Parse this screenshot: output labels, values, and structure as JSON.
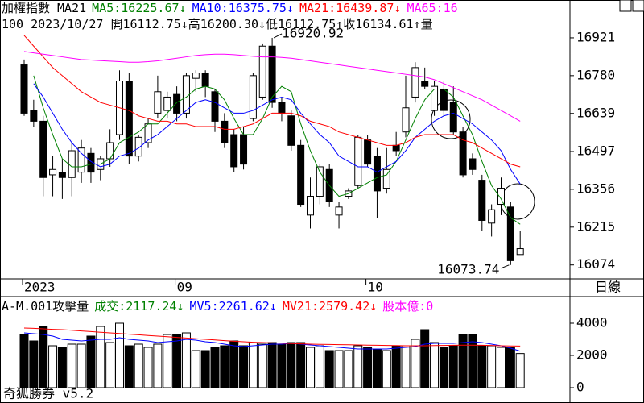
{
  "header": {
    "title": "加權指數 MA21",
    "info": "100 2023/10/27 開16112.75↓高16200.30↓低16112.75↑收16134.61↑量"
  },
  "period": "日線",
  "footer": "奇狐勝券 v5.2",
  "chart_data": [
    {
      "type": "candlestick",
      "categories": [
        "2023",
        null,
        null,
        null,
        null,
        null,
        null,
        null,
        null,
        null,
        null,
        null,
        null,
        null,
        null,
        null,
        "09",
        null,
        null,
        null,
        null,
        null,
        null,
        null,
        null,
        null,
        null,
        null,
        null,
        null,
        null,
        null,
        null,
        null,
        null,
        null,
        "10",
        null,
        null,
        null,
        null,
        null,
        null,
        null,
        null,
        null,
        null,
        null,
        null,
        null,
        null,
        null,
        null
      ],
      "open": [
        16820,
        16650,
        16610,
        16410,
        16420,
        16400,
        16420,
        16490,
        16430,
        16470,
        16560,
        16760,
        16480,
        16530,
        16640,
        16650,
        16710,
        16640,
        16770,
        16790,
        16720,
        16610,
        16560,
        16560,
        16620,
        16700,
        16890,
        16680,
        16630,
        16520,
        16260,
        16330,
        16430,
        16260,
        16330,
        16370,
        16540,
        16480,
        16360,
        16520,
        16570,
        16700,
        16760,
        16650,
        16730,
        16680,
        16570,
        16470,
        16390,
        16230,
        16300,
        16290,
        16112.75
      ],
      "high": [
        16840,
        16690,
        16630,
        16480,
        16470,
        16530,
        16540,
        16510,
        16480,
        16580,
        16800,
        16790,
        16560,
        16620,
        16780,
        16720,
        16740,
        16790,
        16800,
        16800,
        16730,
        16640,
        16580,
        16590,
        16790,
        16900,
        16920.92,
        16700,
        16650,
        16540,
        16400,
        16450,
        16450,
        16310,
        16360,
        16560,
        16560,
        16510,
        16510,
        16570,
        16780,
        16830,
        16810,
        16760,
        16760,
        16740,
        16590,
        16490,
        16410,
        16300,
        16400,
        16310,
        16200.3
      ],
      "low": [
        16630,
        16590,
        16330,
        16330,
        16320,
        16330,
        16380,
        16380,
        16390,
        16440,
        16540,
        16450,
        16460,
        16510,
        16620,
        16620,
        16610,
        16620,
        16720,
        16700,
        16570,
        16510,
        16420,
        16430,
        16610,
        16690,
        16660,
        16610,
        16500,
        16290,
        16210,
        16300,
        16290,
        16210,
        16320,
        16360,
        16440,
        16250,
        16340,
        16480,
        16550,
        16680,
        16730,
        16630,
        16630,
        16560,
        16400,
        16410,
        16200,
        16180,
        16260,
        16073.74,
        16112.75
      ],
      "close": [
        16640,
        16610,
        16400,
        16430,
        16400,
        16500,
        16510,
        16420,
        16470,
        16530,
        16760,
        16480,
        16550,
        16600,
        16720,
        16700,
        16640,
        16780,
        16790,
        16740,
        16610,
        16530,
        16440,
        16450,
        16780,
        16890,
        16680,
        16640,
        16520,
        16300,
        16330,
        16440,
        16310,
        16290,
        16350,
        16550,
        16450,
        16350,
        16430,
        16500,
        16660,
        16810,
        16740,
        16740,
        16650,
        16570,
        16410,
        16430,
        16240,
        16280,
        16360,
        16090,
        16134.61
      ],
      "series": [
        {
          "name": "MA5:16225.67↓",
          "color": "#008000",
          "values": [
            null,
            16780,
            16660,
            16560,
            16470,
            16440,
            16440,
            16450,
            16450,
            16470,
            16530,
            16550,
            16570,
            16600,
            16600,
            16640,
            16680,
            16700,
            16730,
            16740,
            16730,
            16690,
            16620,
            16560,
            16560,
            16620,
            16700,
            16740,
            16720,
            16600,
            16500,
            16420,
            16370,
            16330,
            16340,
            16360,
            16380,
            16400,
            16410,
            16460,
            16540,
            16620,
            16690,
            16730,
            16730,
            16700,
            16630,
            16560,
            16460,
            16370,
            16320,
            16250,
            16225.67
          ]
        },
        {
          "name": "MA10:16375.75↓",
          "color": "#0000ff",
          "values": [
            null,
            16750,
            16700,
            16640,
            16580,
            16530,
            16490,
            16460,
            16440,
            16450,
            16480,
            16490,
            16510,
            16540,
            16560,
            16590,
            16620,
            16650,
            16680,
            16690,
            16680,
            16660,
            16640,
            16640,
            16650,
            16670,
            16690,
            16700,
            16690,
            16640,
            16600,
            16560,
            16530,
            16480,
            16460,
            16440,
            16440,
            16420,
            16440,
            16460,
            16500,
            16550,
            16580,
            16610,
            16630,
            16640,
            16620,
            16600,
            16570,
            16540,
            16500,
            16430,
            16375.75
          ]
        },
        {
          "name": "MA21:16439.87↓",
          "color": "#ff0000",
          "values": [
            16930,
            16890,
            16850,
            16810,
            16780,
            16750,
            16720,
            16700,
            16680,
            16670,
            16660,
            16650,
            16630,
            16620,
            16610,
            16610,
            16600,
            16600,
            16590,
            16590,
            16590,
            16580,
            16580,
            16590,
            16600,
            16620,
            16640,
            16640,
            16640,
            16630,
            16610,
            16600,
            16590,
            16570,
            16560,
            16550,
            16540,
            16530,
            16520,
            16520,
            16530,
            16550,
            16560,
            16560,
            16560,
            16560,
            16540,
            16530,
            16510,
            16490,
            16470,
            16450,
            16439.87
          ]
        },
        {
          "name": "MA65:16",
          "color": "#ff00ff",
          "values": [
            16870,
            16865,
            16860,
            16855,
            16850,
            16845,
            16840,
            16838,
            16836,
            16834,
            16832,
            16830,
            16830,
            16832,
            16835,
            16840,
            16845,
            16850,
            16855,
            16858,
            16860,
            16860,
            16858,
            16855,
            16852,
            16850,
            16850,
            16848,
            16845,
            16840,
            16835,
            16830,
            16825,
            16820,
            16815,
            16810,
            16805,
            16800,
            16795,
            16790,
            16785,
            16780,
            16775,
            16765,
            16750,
            16735,
            16720,
            16705,
            16690,
            16670,
            16650,
            16630,
            16610
          ]
        }
      ],
      "ylim": [
        16025,
        17002
      ],
      "yticks": [
        16921,
        16780,
        16639,
        16497,
        16356,
        16215,
        16074
      ]
    },
    {
      "type": "bar",
      "title": "A-M.001攻擊量",
      "volume": {
        "name": "成交:2117.24↓",
        "color": "#008000",
        "values": [
          3300,
          2900,
          3800,
          2600,
          2500,
          2700,
          2700,
          3200,
          3800,
          2800,
          4000,
          2600,
          2700,
          2500,
          2700,
          3300,
          3300,
          3400,
          2300,
          2300,
          2500,
          2600,
          2900,
          2600,
          2800,
          2700,
          2800,
          2700,
          2800,
          2800,
          2500,
          2600,
          2300,
          2300,
          2300,
          2600,
          2500,
          2400,
          2300,
          2600,
          2600,
          3000,
          3600,
          2800,
          2500,
          2600,
          3300,
          3300,
          2600,
          2600,
          2500,
          2500,
          2117.24
        ]
      },
      "series": [
        {
          "name": "MV5:2261.62↓",
          "color": "#0000ff",
          "values": [
            3400,
            3350,
            3300,
            3200,
            3000,
            2950,
            2900,
            2950,
            3000,
            3000,
            3100,
            3000,
            2950,
            2900,
            2800,
            2850,
            2900,
            3000,
            2950,
            2850,
            2800,
            2700,
            2600,
            2550,
            2600,
            2650,
            2700,
            2700,
            2750,
            2700,
            2650,
            2600,
            2550,
            2500,
            2450,
            2400,
            2400,
            2400,
            2400,
            2450,
            2500,
            2550,
            2700,
            2750,
            2750,
            2750,
            2800,
            2850,
            2800,
            2700,
            2600,
            2450,
            2261.62
          ]
        },
        {
          "name": "MV21:2579.42↓",
          "color": "#ff0000",
          "values": [
            3700,
            3680,
            3650,
            3620,
            3600,
            3560,
            3520,
            3480,
            3440,
            3400,
            3360,
            3320,
            3280,
            3240,
            3200,
            3160,
            3120,
            3080,
            3040,
            3000,
            2960,
            2920,
            2880,
            2850,
            2820,
            2800,
            2780,
            2760,
            2740,
            2720,
            2700,
            2690,
            2680,
            2670,
            2660,
            2650,
            2640,
            2630,
            2620,
            2610,
            2600,
            2600,
            2600,
            2610,
            2620,
            2630,
            2640,
            2640,
            2630,
            2620,
            2600,
            2590,
            2579.42
          ]
        }
      ],
      "note": {
        "text": "股本億:0",
        "color": "#ff00ff"
      },
      "ylim": [
        -950,
        5550
      ],
      "yticks": [
        4000,
        2000,
        0
      ]
    }
  ]
}
